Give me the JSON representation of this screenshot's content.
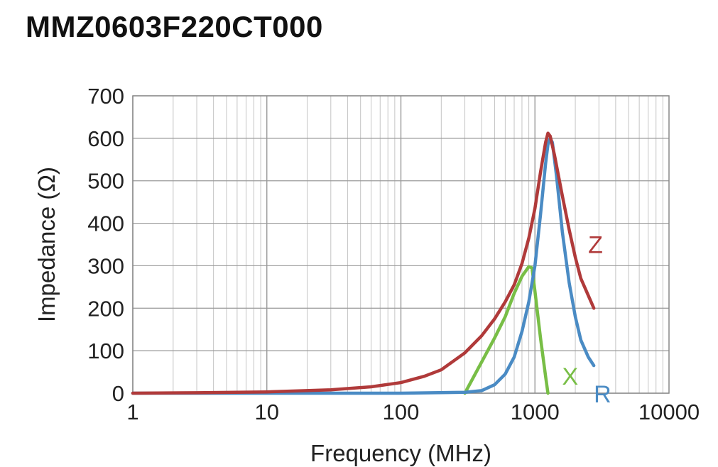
{
  "chart_data": {
    "type": "line",
    "title": "MMZ0603F220CT000",
    "xlabel": "Frequency (MHz)",
    "ylabel": "Impedance (Ω)",
    "x_scale": "log",
    "xlim": [
      1,
      10000
    ],
    "ylim": [
      0,
      700
    ],
    "x_ticks": [
      "1",
      "10",
      "100",
      "1000",
      "10000"
    ],
    "y_ticks": [
      "0",
      "100",
      "200",
      "300",
      "400",
      "500",
      "600",
      "700"
    ],
    "grid": true,
    "legend": "inline labels at line ends",
    "series": [
      {
        "name": "Z",
        "color": "#b03a3a",
        "points": [
          [
            1,
            0
          ],
          [
            3,
            1
          ],
          [
            10,
            3
          ],
          [
            30,
            8
          ],
          [
            60,
            15
          ],
          [
            100,
            25
          ],
          [
            150,
            40
          ],
          [
            200,
            55
          ],
          [
            300,
            95
          ],
          [
            400,
            135
          ],
          [
            500,
            175
          ],
          [
            600,
            215
          ],
          [
            700,
            255
          ],
          [
            800,
            305
          ],
          [
            900,
            365
          ],
          [
            1000,
            435
          ],
          [
            1100,
            520
          ],
          [
            1200,
            590
          ],
          [
            1250,
            612
          ],
          [
            1300,
            605
          ],
          [
            1400,
            560
          ],
          [
            1600,
            465
          ],
          [
            1800,
            385
          ],
          [
            2000,
            320
          ],
          [
            2200,
            270
          ],
          [
            2500,
            230
          ],
          [
            2750,
            200
          ]
        ]
      },
      {
        "name": "R",
        "color": "#4a8bc4",
        "points": [
          [
            1,
            0
          ],
          [
            100,
            0
          ],
          [
            300,
            2
          ],
          [
            400,
            6
          ],
          [
            500,
            20
          ],
          [
            600,
            45
          ],
          [
            700,
            85
          ],
          [
            800,
            145
          ],
          [
            900,
            215
          ],
          [
            1000,
            300
          ],
          [
            1100,
            420
          ],
          [
            1200,
            540
          ],
          [
            1250,
            585
          ],
          [
            1300,
            600
          ],
          [
            1350,
            590
          ],
          [
            1450,
            510
          ],
          [
            1600,
            380
          ],
          [
            1800,
            260
          ],
          [
            2000,
            180
          ],
          [
            2200,
            125
          ],
          [
            2500,
            85
          ],
          [
            2750,
            65
          ]
        ]
      },
      {
        "name": "X",
        "color": "#78be46",
        "points": [
          [
            300,
            0
          ],
          [
            500,
            130
          ],
          [
            600,
            180
          ],
          [
            700,
            235
          ],
          [
            800,
            275
          ],
          [
            900,
            298
          ],
          [
            950,
            295
          ],
          [
            1000,
            240
          ],
          [
            1100,
            130
          ],
          [
            1200,
            40
          ],
          [
            1250,
            0
          ]
        ]
      }
    ]
  }
}
